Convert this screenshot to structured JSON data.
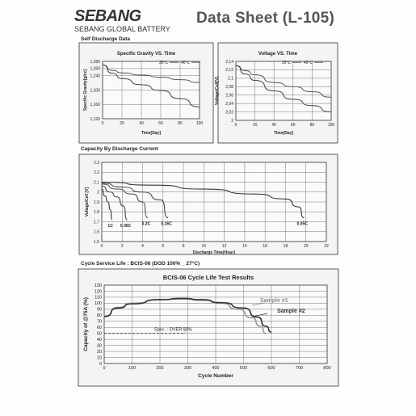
{
  "header": {
    "logo_mark": "SEBANG",
    "logo_sub": "SEBANG GLOBAL BATTERY",
    "title": "Data Sheet (L-105)"
  },
  "sections": {
    "self_discharge": "Self Discharge Data",
    "capacity": "Capacity By Discharge Current",
    "cycle": "Cycle Service Life : BCIS-06  (DOD 100% _ 27°C)"
  },
  "chart_data": [
    {
      "type": "line",
      "title": "Specific Gravity VS. Time",
      "xlabel": "Time[Day]",
      "ylabel": "Specific Gravity[g/cc]",
      "xlim": [
        0,
        100
      ],
      "ylim": [
        1.12,
        1.28
      ],
      "xticks": [
        0,
        20,
        40,
        60,
        80,
        100
      ],
      "yticks": [
        1.12,
        1.16,
        1.2,
        1.24,
        1.26,
        1.28
      ],
      "ytick_labels": [
        "1,120",
        "1,160",
        "1,200",
        "1,240",
        "1,260",
        "1,280"
      ],
      "legend": "top-right",
      "grid": true,
      "series": [
        {
          "name": "25℃",
          "x": [
            0,
            10,
            20,
            40,
            60,
            80,
            100
          ],
          "y": [
            1.27,
            1.255,
            1.248,
            1.242,
            1.236,
            1.229,
            1.221
          ]
        },
        {
          "name": "40℃",
          "x": [
            0,
            10,
            20,
            40,
            60,
            80,
            100
          ],
          "y": [
            1.27,
            1.247,
            1.232,
            1.215,
            1.199,
            1.176,
            1.153
          ]
        }
      ]
    },
    {
      "type": "line",
      "title": "Voltage VS. Time",
      "xlabel": "Time[Day]",
      "ylabel": "Voltage/Cell[V]",
      "xlim": [
        0,
        100
      ],
      "ylim": [
        2.0,
        2.14
      ],
      "xticks": [
        0,
        20,
        40,
        60,
        80,
        100
      ],
      "yticks": [
        2.0,
        2.02,
        2.04,
        2.06,
        2.08,
        2.1,
        2.12,
        2.14
      ],
      "ytick_labels": [
        "2",
        "2,02",
        "2,04",
        "2,06",
        "2,08",
        "2,1",
        "2,12",
        "2,14"
      ],
      "legend": "top-right",
      "grid": true,
      "series": [
        {
          "name": "25℃",
          "x": [
            0,
            10,
            20,
            40,
            60,
            80,
            100
          ],
          "y": [
            2.13,
            2.118,
            2.108,
            2.09,
            2.08,
            2.068,
            2.055
          ]
        },
        {
          "name": "40℃",
          "x": [
            0,
            10,
            20,
            40,
            60,
            80,
            100
          ],
          "y": [
            2.13,
            2.11,
            2.095,
            2.07,
            2.05,
            2.035,
            2.02
          ]
        }
      ]
    },
    {
      "type": "line",
      "title": "",
      "xlabel": "Discharge  Time[Hour]",
      "ylabel": "Voltage/Cell [V]",
      "xlim": [
        0,
        22
      ],
      "ylim": [
        1.5,
        2.3
      ],
      "xticks": [
        0,
        2,
        4,
        6,
        8,
        10,
        12,
        14,
        16,
        18,
        20,
        22
      ],
      "yticks": [
        1.5,
        1.6,
        1.7,
        1.8,
        1.9,
        2.0,
        2.1,
        2.2,
        2.3
      ],
      "grid": true,
      "series": [
        {
          "name": "1C",
          "x": [
            0,
            0.3,
            0.6,
            0.85,
            1.0
          ],
          "y": [
            2.03,
            1.96,
            1.9,
            1.82,
            1.72
          ]
        },
        {
          "name": "0.36C",
          "x": [
            0,
            0.8,
            1.5,
            2.1,
            2.5
          ],
          "y": [
            2.06,
            2.0,
            1.95,
            1.86,
            1.72
          ]
        },
        {
          "name": "0.2C",
          "x": [
            0,
            1.5,
            3.0,
            4.0,
            4.5
          ],
          "y": [
            2.08,
            2.03,
            1.98,
            1.9,
            1.74
          ]
        },
        {
          "name": "0.16C",
          "x": [
            0,
            2,
            4,
            5.8,
            6.5
          ],
          "y": [
            2.09,
            2.05,
            2.0,
            1.92,
            1.74
          ]
        },
        {
          "name": "0.05C",
          "x": [
            0,
            5,
            10,
            15,
            18,
            19.3,
            19.8
          ],
          "y": [
            2.1,
            2.07,
            2.03,
            1.98,
            1.93,
            1.85,
            1.74
          ]
        }
      ]
    },
    {
      "type": "line",
      "title": "BCIS-06 Cycle Life Test Results",
      "xlabel": "Cycle Number",
      "ylabel": "Capacity of @75A (%)",
      "xlim": [
        0,
        800
      ],
      "ylim": [
        0,
        130
      ],
      "xticks": [
        0,
        100,
        200,
        300,
        400,
        500,
        600,
        700,
        800
      ],
      "yticks": [
        0,
        10,
        20,
        30,
        40,
        50,
        60,
        70,
        80,
        90,
        100,
        110,
        120,
        130
      ],
      "grid": true,
      "series": [
        {
          "name": "Sample #1",
          "x": [
            0,
            50,
            100,
            200,
            280,
            350,
            420,
            480,
            530,
            560,
            580
          ],
          "y": [
            78,
            93,
            100,
            106,
            107,
            105,
            100,
            90,
            76,
            62,
            50
          ]
        },
        {
          "name": "Sample #2",
          "x": [
            0,
            50,
            100,
            200,
            280,
            350,
            420,
            500,
            550,
            580,
            600
          ],
          "y": [
            78,
            92,
            99,
            106,
            108,
            106,
            101,
            92,
            77,
            62,
            52
          ]
        }
      ],
      "annotations": [
        {
          "text": "Spec. : OVER 50%",
          "y": 50,
          "x_end": 290
        }
      ]
    }
  ]
}
